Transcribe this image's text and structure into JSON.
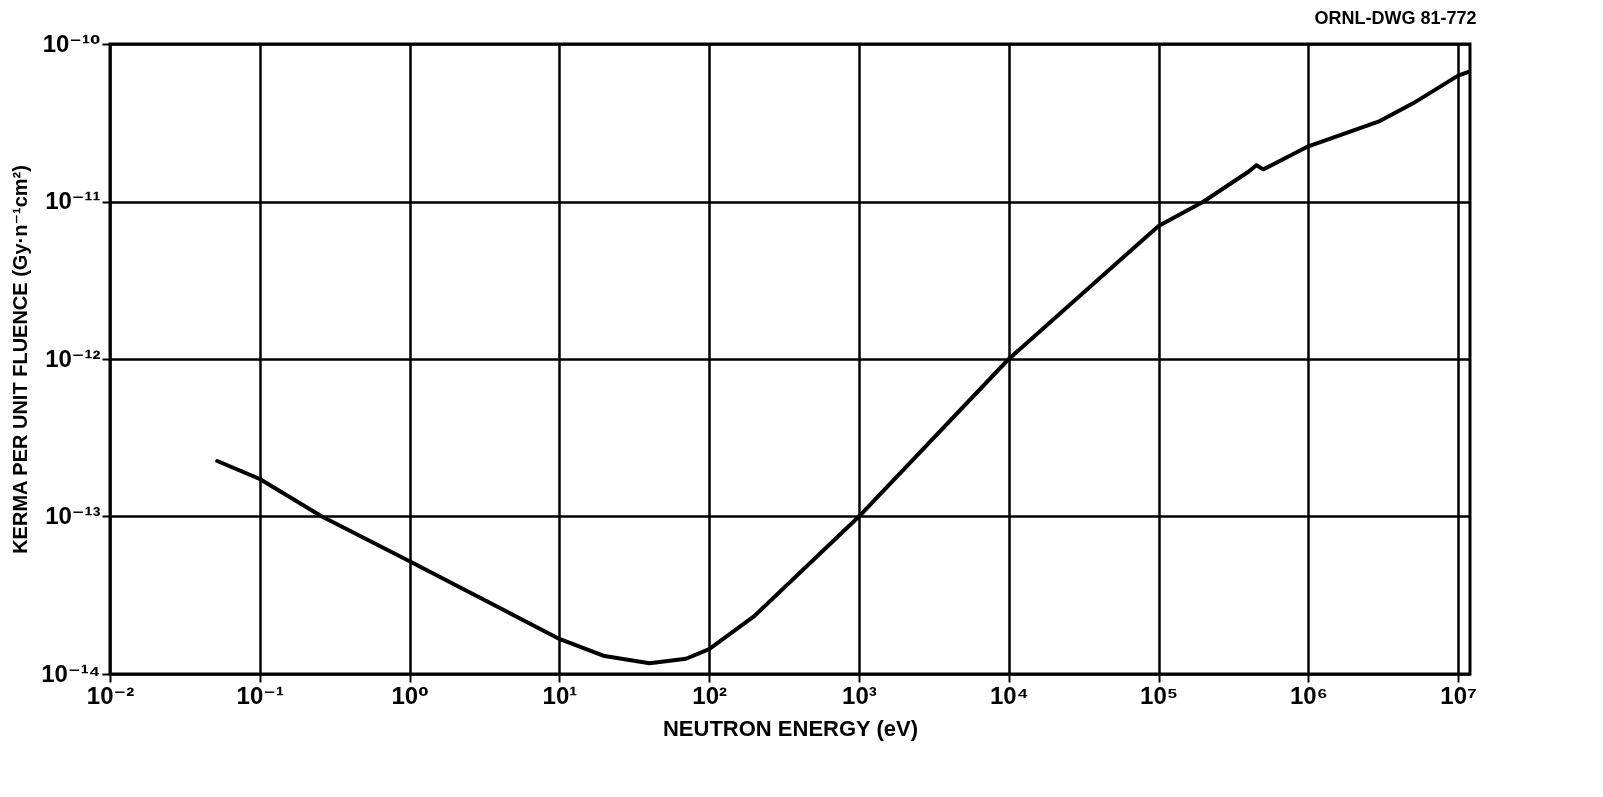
{
  "chart_data": {
    "type": "line",
    "xlabel": "NEUTRON ENERGY (eV)",
    "ylabel": "KERMA PER UNIT FLUENCE (Gy·n⁻¹cm²)",
    "annotations": [
      "ORNL-DWG 81-772"
    ],
    "log": "xy",
    "grid": true,
    "legend": false,
    "marker": "none",
    "line_style": "solid",
    "xlim": [
      0.01,
      12000000
    ],
    "ylim": [
      1e-14,
      1e-10
    ],
    "xticks": [
      {
        "value": 0.01,
        "label": "10⁻²"
      },
      {
        "value": 0.1,
        "label": "10⁻¹"
      },
      {
        "value": 1,
        "label": "10⁰"
      },
      {
        "value": 10,
        "label": "10¹"
      },
      {
        "value": 100,
        "label": "10²"
      },
      {
        "value": 1000,
        "label": "10³"
      },
      {
        "value": 10000,
        "label": "10⁴"
      },
      {
        "value": 100000,
        "label": "10⁵"
      },
      {
        "value": 1000000,
        "label": "10⁶"
      },
      {
        "value": 10000000,
        "label": "10⁷"
      }
    ],
    "yticks": [
      {
        "value": 1e-14,
        "label": "10⁻¹⁴"
      },
      {
        "value": 1e-13,
        "label": "10⁻¹³"
      },
      {
        "value": 1e-12,
        "label": "10⁻¹²"
      },
      {
        "value": 1e-11,
        "label": "10⁻¹¹"
      },
      {
        "value": 1e-10,
        "label": "10⁻¹⁰"
      }
    ],
    "x": [
      0.052,
      0.1,
      0.26,
      1,
      10,
      20,
      40,
      70,
      100,
      200,
      1000,
      10000,
      100000,
      200000,
      400000,
      450000,
      500000,
      1000000,
      3000000,
      5000000,
      10000000,
      12000000
    ],
    "series": [
      {
        "color": "#000000",
        "values": [
          2.25e-13,
          1.73e-13,
          1e-13,
          5.2e-14,
          1.67e-14,
          1.3e-14,
          1.17e-14,
          1.25e-14,
          1.44e-14,
          2.33e-14,
          1e-13,
          1e-12,
          7e-12,
          1e-11,
          1.55e-11,
          1.7e-11,
          1.6e-11,
          2.24e-11,
          3.24e-11,
          4.2e-11,
          6.3e-11,
          6.7e-11
        ]
      }
    ]
  }
}
